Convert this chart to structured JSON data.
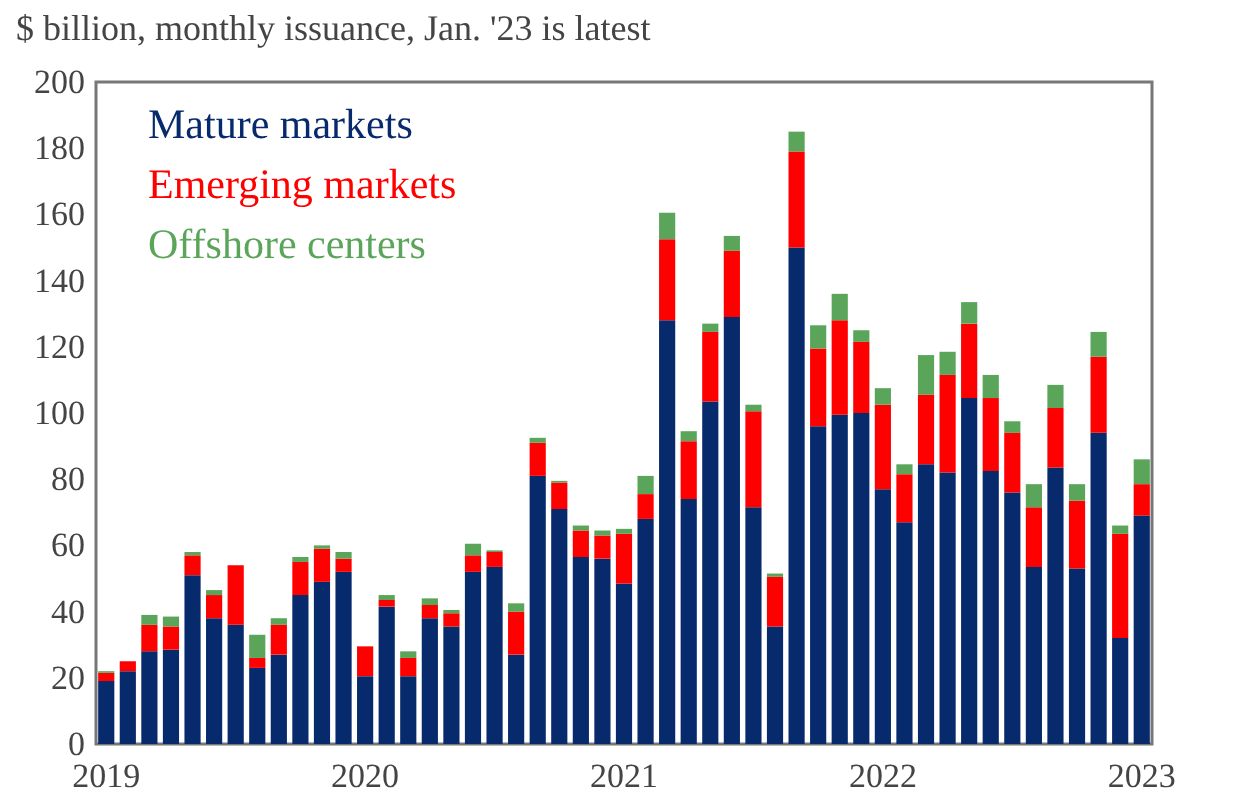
{
  "chart_data": {
    "type": "bar",
    "stacked": true,
    "title": "$ billion, monthly issuance,  Jan. '23 is latest",
    "categories": [
      "2019",
      null,
      null,
      null,
      null,
      null,
      null,
      null,
      null,
      null,
      null,
      null,
      "2020",
      null,
      null,
      null,
      null,
      null,
      null,
      null,
      null,
      null,
      null,
      null,
      "2021",
      null,
      null,
      null,
      null,
      null,
      null,
      null,
      null,
      null,
      null,
      null,
      "2022",
      null,
      null,
      null,
      null,
      null,
      null,
      null,
      null,
      null,
      null,
      null,
      "2023"
    ],
    "series": [
      {
        "name": "Mature markets",
        "color": "#072a6c",
        "values": [
          19,
          22,
          28,
          28.5,
          51,
          38,
          36,
          23,
          27,
          45,
          49,
          52,
          20.5,
          41.5,
          20.5,
          38,
          35.5,
          52,
          53.5,
          27,
          81,
          71,
          56.5,
          56,
          48.5,
          68,
          128,
          74,
          103.5,
          129,
          71.5,
          35.5,
          150,
          96,
          99.5,
          100,
          77,
          67,
          84.5,
          82,
          104.5,
          82.5,
          76,
          53.5,
          83.5,
          53,
          94,
          32,
          69
        ]
      },
      {
        "name": "Emerging markets",
        "color": "#ff0000",
        "values": [
          2.5,
          3,
          8,
          7,
          6,
          7,
          18,
          3,
          9,
          10,
          10,
          4,
          9,
          2,
          5.5,
          4,
          4,
          5,
          4.5,
          13,
          10,
          8,
          8,
          7,
          15,
          7.5,
          24.5,
          17.5,
          21,
          20,
          29,
          15,
          29,
          23.5,
          28.5,
          21.5,
          25.5,
          14.5,
          21,
          29.5,
          22.5,
          22,
          18,
          18,
          18,
          20.5,
          23,
          31.5,
          9.5
        ]
      },
      {
        "name": "Offshore centers",
        "color": "#5aa55a",
        "values": [
          0.5,
          0,
          3,
          3,
          1,
          1.5,
          0,
          7,
          2,
          1.5,
          1,
          2,
          0,
          1.5,
          2,
          2,
          1,
          3.5,
          0.5,
          2.5,
          1.5,
          0.5,
          1.5,
          1.5,
          1.5,
          5.5,
          8,
          3,
          2.5,
          4.5,
          2,
          1,
          6,
          7,
          8,
          3.5,
          5,
          3,
          12,
          7,
          6.5,
          7,
          3.5,
          7,
          7,
          5,
          7.5,
          2.5,
          7.5
        ]
      }
    ],
    "ylim": [
      0,
      200
    ],
    "yticks": [
      0,
      20,
      40,
      60,
      80,
      100,
      120,
      140,
      160,
      180,
      200
    ],
    "legend": "top left",
    "grid": false
  }
}
